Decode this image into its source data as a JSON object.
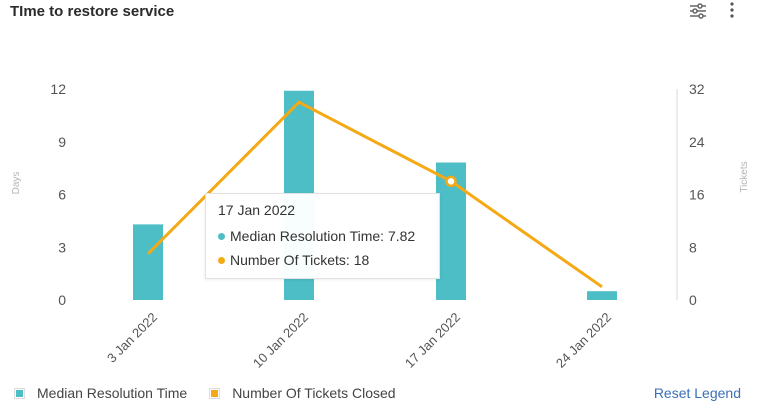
{
  "header": {
    "title": "TIme to restore service",
    "filter_icon": "sliders-icon",
    "menu_icon": "more-vertical-icon"
  },
  "colors": {
    "bars": "#4dbdc6",
    "line": "#f4a915",
    "link": "#3b6fb6"
  },
  "chart_data": {
    "type": "bar",
    "categories": [
      "3 Jan 2022",
      "10 Jan 2022",
      "17 Jan 2022",
      "24 Jan 2022"
    ],
    "series": [
      {
        "name": "Median Resolution Time",
        "type": "bar",
        "axis": "left",
        "values": [
          4.3,
          11.9,
          7.82,
          0.5
        ]
      },
      {
        "name": "Number Of Tickets Closed",
        "type": "line",
        "axis": "right",
        "values": [
          7,
          30,
          18,
          2
        ]
      }
    ],
    "ylabel": "Days",
    "y2label": "Tickets",
    "yticks": [
      "0",
      "3",
      "6",
      "9",
      "12"
    ],
    "y2ticks": [
      "0",
      "8",
      "16",
      "24",
      "32"
    ],
    "ylim": [
      0,
      12
    ],
    "y2lim": [
      0,
      32
    ],
    "grid": false,
    "legend": "bottom-left"
  },
  "tooltip": {
    "date": "17 Jan 2022",
    "rows": [
      {
        "label": "Median Resolution Time: 7.82"
      },
      {
        "label": "Number Of Tickets: 18"
      }
    ]
  },
  "legend": {
    "items": [
      {
        "label": "Median Resolution Time"
      },
      {
        "label": "Number Of Tickets Closed"
      }
    ],
    "reset_label": "Reset Legend"
  }
}
